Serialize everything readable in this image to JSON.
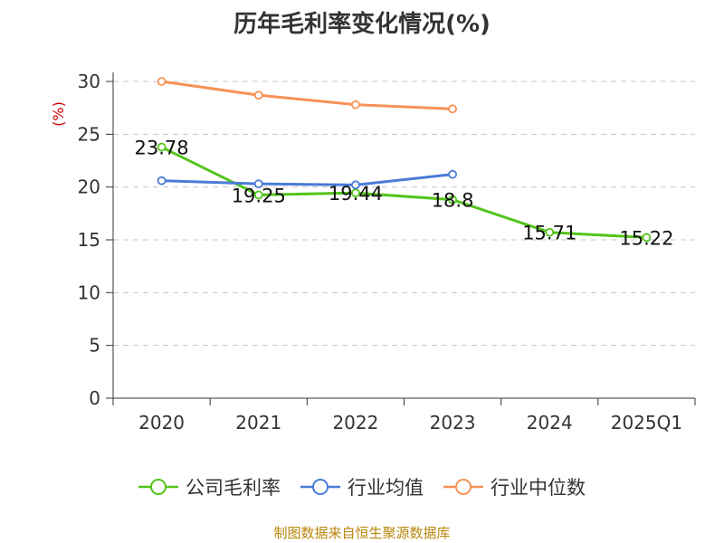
{
  "chart_data": {
    "type": "line",
    "title": "历年毛利率变化情况(%)",
    "ylabel": "(%)",
    "categories": [
      "2020",
      "2021",
      "2022",
      "2023",
      "2024",
      "2025Q1"
    ],
    "ylim": [
      0,
      30
    ],
    "yticks": [
      "0",
      "5",
      "10",
      "15",
      "20",
      "25",
      "30"
    ],
    "grid": true,
    "legend_position": "bottom",
    "series": [
      {
        "name": "公司毛利率",
        "color": "#52c41a",
        "values": [
          23.78,
          19.25,
          19.44,
          18.8,
          15.71,
          15.22
        ],
        "labels": [
          "23.78",
          "19.25",
          "19.44",
          "18.8",
          "15.71",
          "15.22"
        ]
      },
      {
        "name": "行业均值",
        "color": "#4a7bd8",
        "values": [
          20.6,
          20.3,
          20.2,
          21.2,
          null,
          null
        ]
      },
      {
        "name": "行业中位数",
        "color": "#f79257",
        "values": [
          30.0,
          28.7,
          27.8,
          27.4,
          null,
          null
        ]
      }
    ]
  },
  "source": "制图数据来自恒生聚源数据库"
}
